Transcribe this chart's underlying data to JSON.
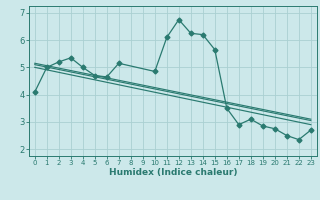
{
  "xlabel": "Humidex (Indice chaleur)",
  "bg_color": "#cce8ea",
  "grid_color": "#aad0d2",
  "line_color": "#2a7a70",
  "xlim": [
    -0.5,
    23.5
  ],
  "ylim": [
    1.75,
    7.25
  ],
  "yticks": [
    2,
    3,
    4,
    5,
    6,
    7
  ],
  "xticks": [
    0,
    1,
    2,
    3,
    4,
    5,
    6,
    7,
    8,
    9,
    10,
    11,
    12,
    13,
    14,
    15,
    16,
    17,
    18,
    19,
    20,
    21,
    22,
    23
  ],
  "main_x": [
    0,
    1,
    2,
    3,
    4,
    5,
    6,
    7,
    10,
    11,
    12,
    13,
    14,
    15,
    16,
    17,
    18,
    19,
    20,
    21,
    22,
    23
  ],
  "main_y": [
    4.1,
    5.0,
    5.2,
    5.35,
    5.0,
    4.7,
    4.65,
    5.15,
    4.85,
    6.1,
    6.75,
    6.25,
    6.2,
    5.65,
    3.5,
    2.9,
    3.1,
    2.85,
    2.75,
    2.5,
    2.35,
    2.7
  ],
  "trend1_x": [
    0,
    23
  ],
  "trend1_y": [
    5.1,
    3.05
  ],
  "trend2_x": [
    0,
    23
  ],
  "trend2_y": [
    5.0,
    2.9
  ],
  "trend3_x": [
    0,
    23
  ],
  "trend3_y": [
    5.15,
    3.1
  ]
}
